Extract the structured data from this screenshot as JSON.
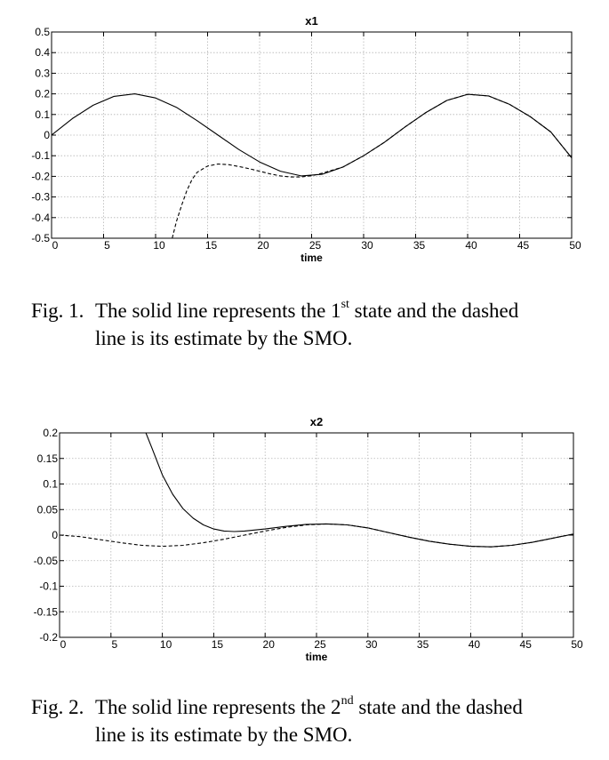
{
  "chart_data": [
    {
      "type": "line",
      "title": "x1",
      "xlabel": "time",
      "ylabel": "",
      "xlim": [
        0,
        50
      ],
      "ylim": [
        -0.5,
        0.5
      ],
      "xticks": [
        "0",
        "5",
        "10",
        "15",
        "20",
        "25",
        "30",
        "35",
        "40",
        "45",
        "50"
      ],
      "yticks": [
        "0.5",
        "0.4",
        "0.3",
        "0.2",
        "0.1",
        "0",
        "-0.1",
        "-0.2",
        "-0.3",
        "-0.4",
        "-0.5"
      ],
      "grid": true,
      "series": [
        {
          "style": "solid",
          "x": [
            0,
            2,
            4,
            6,
            8,
            10,
            12,
            14,
            16,
            18,
            20,
            22,
            24,
            26,
            28,
            30,
            32,
            34,
            36,
            38,
            40,
            42,
            44,
            46,
            48,
            50
          ],
          "y": [
            0.0,
            0.08,
            0.145,
            0.188,
            0.2,
            0.18,
            0.135,
            0.07,
            0.0,
            -0.07,
            -0.13,
            -0.175,
            -0.198,
            -0.19,
            -0.155,
            -0.1,
            -0.035,
            0.04,
            0.11,
            0.168,
            0.198,
            0.19,
            0.15,
            0.09,
            0.015,
            -0.11
          ]
        },
        {
          "style": "dashed",
          "x": [
            11.6,
            12,
            12.5,
            13,
            13.5,
            14,
            15,
            16,
            17,
            18,
            19,
            20,
            21,
            22,
            23,
            24,
            25,
            26,
            27,
            28,
            30,
            32,
            34,
            36,
            38,
            40,
            42,
            44,
            46,
            48,
            50
          ],
          "y": [
            -0.5,
            -0.42,
            -0.34,
            -0.27,
            -0.215,
            -0.18,
            -0.15,
            -0.14,
            -0.143,
            -0.152,
            -0.163,
            -0.175,
            -0.188,
            -0.198,
            -0.203,
            -0.203,
            -0.197,
            -0.185,
            -0.17,
            -0.155,
            -0.1,
            -0.035,
            0.04,
            0.11,
            0.168,
            0.198,
            0.19,
            0.15,
            0.09,
            0.015,
            -0.11
          ]
        }
      ]
    },
    {
      "type": "line",
      "title": "x2",
      "xlabel": "time",
      "ylabel": "",
      "xlim": [
        0,
        50
      ],
      "ylim": [
        -0.2,
        0.2
      ],
      "xticks": [
        "0",
        "5",
        "10",
        "15",
        "20",
        "25",
        "30",
        "35",
        "40",
        "45",
        "50"
      ],
      "yticks": [
        "0.2",
        "0.15",
        "0.1",
        "0.05",
        "0",
        "-0.05",
        "-0.1",
        "-0.15",
        "-0.2"
      ],
      "grid": true,
      "series": [
        {
          "style": "solid",
          "x": [
            8.4,
            9,
            10,
            11,
            12,
            13,
            14,
            15,
            16,
            17,
            18,
            20,
            22,
            24,
            26,
            28,
            30,
            32,
            34,
            36,
            38,
            40,
            42,
            44,
            46,
            48,
            50
          ],
          "y": [
            0.2,
            0.17,
            0.118,
            0.08,
            0.052,
            0.033,
            0.02,
            0.012,
            0.008,
            0.007,
            0.008,
            0.012,
            0.017,
            0.021,
            0.022,
            0.02,
            0.014,
            0.005,
            -0.004,
            -0.012,
            -0.018,
            -0.022,
            -0.023,
            -0.02,
            -0.014,
            -0.006,
            0.002
          ]
        },
        {
          "style": "dashed",
          "x": [
            0,
            2,
            4,
            6,
            8,
            10,
            12,
            14,
            16,
            18,
            20,
            22,
            24,
            26,
            28,
            30,
            32,
            34,
            36,
            38,
            40,
            42,
            44,
            46,
            48,
            50
          ],
          "y": [
            0.0,
            -0.003,
            -0.009,
            -0.015,
            -0.02,
            -0.022,
            -0.02,
            -0.015,
            -0.008,
            0.0,
            0.008,
            0.015,
            0.02,
            0.022,
            0.02,
            0.014,
            0.005,
            -0.004,
            -0.012,
            -0.018,
            -0.022,
            -0.023,
            -0.02,
            -0.014,
            -0.006,
            0.002
          ]
        }
      ]
    }
  ],
  "captions": [
    {
      "label": "Fig. 1.",
      "pre": "The solid line represents the 1",
      "sup": "st",
      "post": " state and the dashed",
      "line2": "line is its estimate by the SMO."
    },
    {
      "label": "Fig. 2.",
      "pre": "The solid line represents the 2",
      "sup": "nd",
      "post": " state and the dashed",
      "line2": "line is its estimate by the SMO."
    }
  ]
}
